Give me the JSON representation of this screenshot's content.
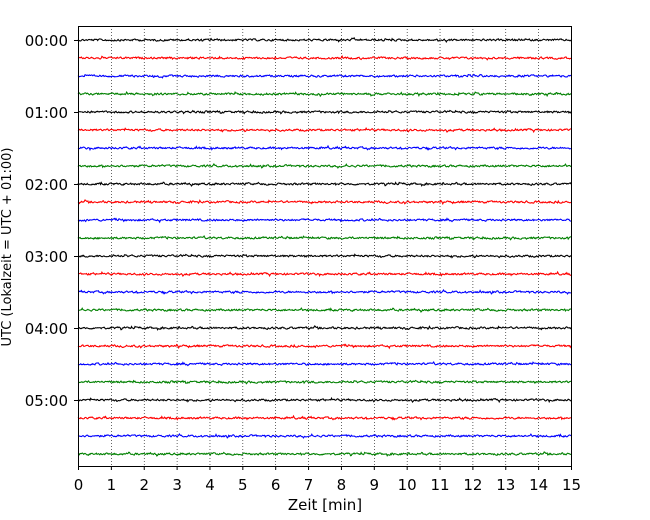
{
  "chart_data": {
    "type": "line",
    "subtype": "helicorder",
    "xlabel": "Zeit  [min]",
    "ylabel": "UTC (Lokalzeit = UTC + 01:00)",
    "xlim": [
      0,
      15
    ],
    "x_ticks": [
      "0",
      "1",
      "2",
      "3",
      "4",
      "5",
      "6",
      "7",
      "8",
      "9",
      "10",
      "11",
      "12",
      "13",
      "14",
      "15"
    ],
    "y_tick_labels": [
      "00:00",
      "01:00",
      "02:00",
      "03:00",
      "04:00",
      "05:00"
    ],
    "trace_interval_minutes": 15,
    "trace_count": 24,
    "trace_color_cycle": [
      "#000000",
      "#ff0000",
      "#0000ff",
      "#008000"
    ],
    "grid": "vertical dotted lines at each minute",
    "series": [
      {
        "start": "00:00"
      },
      {
        "start": "00:15"
      },
      {
        "start": "00:30"
      },
      {
        "start": "00:45"
      },
      {
        "start": "01:00"
      },
      {
        "start": "01:15"
      },
      {
        "start": "01:30"
      },
      {
        "start": "01:45"
      },
      {
        "start": "02:00"
      },
      {
        "start": "02:15"
      },
      {
        "start": "02:30"
      },
      {
        "start": "02:45"
      },
      {
        "start": "03:00"
      },
      {
        "start": "03:15"
      },
      {
        "start": "03:30"
      },
      {
        "start": "03:45"
      },
      {
        "start": "04:00"
      },
      {
        "start": "04:15"
      },
      {
        "start": "04:30"
      },
      {
        "start": "04:45"
      },
      {
        "start": "05:00"
      },
      {
        "start": "05:15"
      },
      {
        "start": "05:30"
      },
      {
        "start": "05:45"
      }
    ]
  }
}
